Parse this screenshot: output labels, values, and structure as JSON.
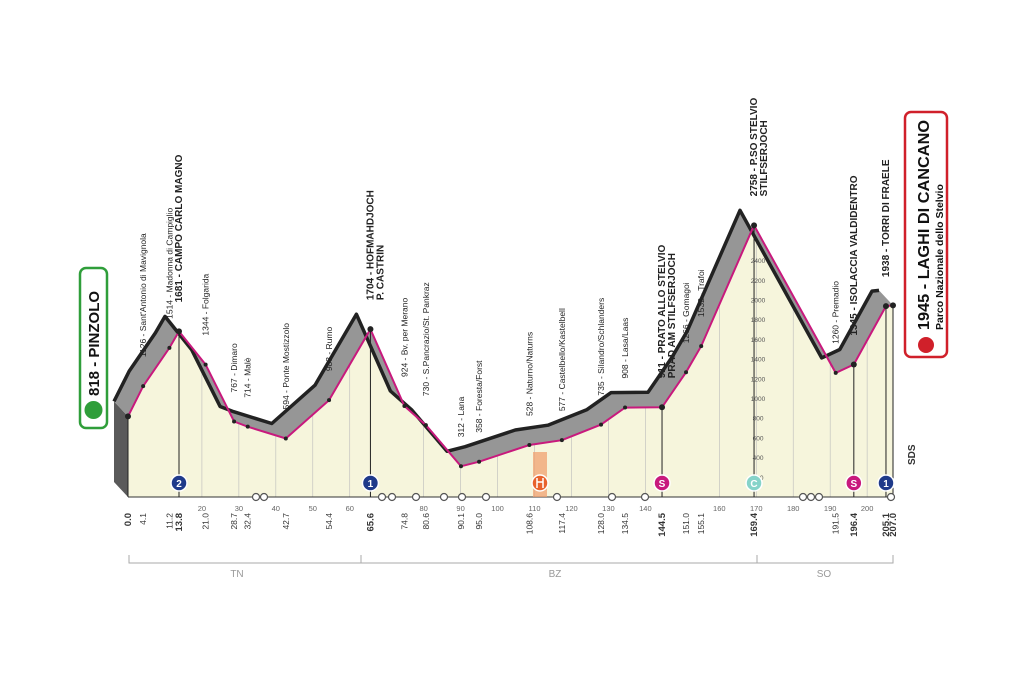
{
  "chart_data": {
    "type": "area",
    "x": [
      0.0,
      4.1,
      11.2,
      13.8,
      21.0,
      28.7,
      32.4,
      42.7,
      54.4,
      65.6,
      74.8,
      80.6,
      90.1,
      95.0,
      108.6,
      117.4,
      128.0,
      134.5,
      144.5,
      151.0,
      155.1,
      169.4,
      191.5,
      196.4,
      205.1,
      207.0
    ],
    "x_labels": [
      "0.0",
      "4.1",
      "11.2",
      "13.8",
      "21.0",
      "28.7",
      "32.4",
      "42.7",
      "54.4",
      "65.6",
      "74.8",
      "80.6",
      "90.1",
      "95.0",
      "108.6",
      "117.4",
      "128.0",
      "134.5",
      "144.5",
      "151.0",
      "155.1",
      "169.4",
      "191.5",
      "196.4",
      "205.1",
      "207.0"
    ],
    "values": [
      818,
      1126,
      1514,
      1681,
      1344,
      767,
      714,
      594,
      983,
      1704,
      924,
      730,
      312,
      358,
      528,
      577,
      735,
      908,
      911,
      1266,
      1532,
      2758,
      1260,
      1345,
      1938,
      1945
    ],
    "value_labels": [
      "818 - PINZOLO",
      "1126 - Sant'Antonio di Mavignola",
      "1514 - Madonna di Campiglio",
      "1681 - CAMPO CARLO MAGNO",
      "1344 - Folgarida",
      "767 - Dimaro",
      "714 - Malè",
      "594 - Ponte Mostizzolo",
      "983 - Rumo",
      "1704 - HOFMAHDJOCH",
      "924 - Bv. per Merano",
      "730 - S.Pancrazio/St. Pankraz",
      "312 - Lana",
      "358 - Foresta/Forst",
      "528 - Naturno/Naturns",
      "577 - Castelbello/Kastelbell",
      "735 - Silandro/Schlanders",
      "908 - Lasa/Laas",
      "911 - PRATO ALLO STELVIO",
      "1266 - Gomagoi",
      "1532 - Trafoi",
      "2758 - P.SO STELVIO",
      "1260 - Premadio",
      "1345 - ISOLACCIA VALDIDENTRO",
      "1938 - TORRI DI FRAELE",
      "1945 - LAGHI DI CANCANO"
    ],
    "sublabels": {
      "9": "P. CASTRIN",
      "18": "PRAD AM STILFSERJOCH",
      "21": "STILFSERJOCH",
      "25": "Parco Nazionale dello Stelvio"
    },
    "highlight": [
      0,
      3,
      9,
      18,
      21,
      23,
      24,
      25
    ],
    "xlim": [
      0,
      207
    ],
    "xticks": [
      20,
      30,
      40,
      50,
      60,
      80,
      90,
      100,
      110,
      120,
      130,
      140,
      160,
      170,
      180,
      190,
      200
    ],
    "ylim": [
      0,
      3000
    ],
    "yticks": [
      200,
      400,
      600,
      800,
      1000,
      1200,
      1400,
      1600,
      1800,
      2000,
      2200,
      2400
    ],
    "grid": true,
    "line_color": "#c8197d",
    "fill_color": "#f6f5dc",
    "band_color": "#969696",
    "markers": [
      {
        "km": 13.8,
        "text": "2",
        "color": "#1f3a8a"
      },
      {
        "km": 65.6,
        "text": "1",
        "color": "#1f3a8a"
      },
      {
        "km": 144.5,
        "text": "S",
        "color": "#c8197d"
      },
      {
        "km": 169.4,
        "text": "C",
        "color": "#86d3c9"
      },
      {
        "km": 196.4,
        "text": "S",
        "color": "#c8197d"
      },
      {
        "km": 205.1,
        "text": "1",
        "color": "#1f3a8a"
      }
    ],
    "regions": [
      "TN",
      "BZ",
      "SO"
    ],
    "side_note": "SDS"
  }
}
